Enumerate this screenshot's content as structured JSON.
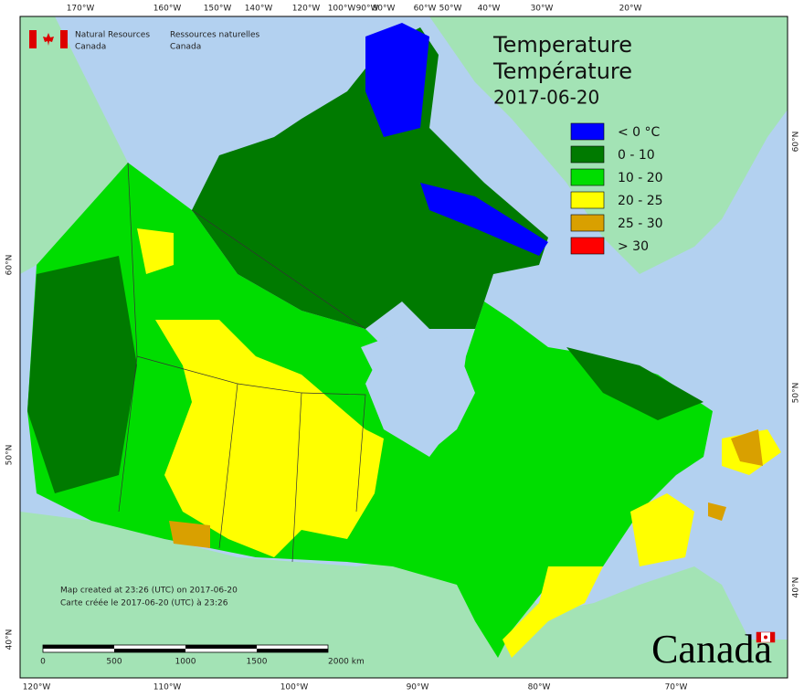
{
  "header": {
    "agency_en": [
      "Natural Resources",
      "Canada"
    ],
    "agency_fr": [
      "Ressources naturelles",
      "Canada"
    ]
  },
  "title": [
    "Temperature",
    "Température",
    "2017-06-20"
  ],
  "legend": [
    {
      "label": "< 0 °C",
      "color": "#0000ff"
    },
    {
      "label": "0 - 10",
      "color": "#007a00"
    },
    {
      "label": "10 - 20",
      "color": "#00dd00"
    },
    {
      "label": "20 - 25",
      "color": "#ffff00"
    },
    {
      "label": "25 - 30",
      "color": "#d9a000"
    },
    {
      "label": "> 30",
      "color": "#ff0000"
    }
  ],
  "graticule": {
    "top": [
      "170°W",
      "160°W",
      "150°W",
      "140°W",
      "120°W",
      "100°W",
      "90°W",
      "80°W",
      "60°W",
      "50°W",
      "40°W",
      "30°W",
      "20°W"
    ],
    "bottom": [
      "120°W",
      "110°W",
      "100°W",
      "90°W",
      "80°W",
      "70°W"
    ],
    "left": [
      "60°N",
      "50°N",
      "40°N"
    ],
    "right": [
      "60°N",
      "50°N",
      "40°N"
    ]
  },
  "footer": [
    "Map created at 23:26 (UTC) on 2017-06-20",
    "Carte créée le 2017-06-20 (UTC) à 23:26"
  ],
  "scale": [
    "0",
    "500",
    "1000",
    "1500",
    "2000 km"
  ],
  "wordmark": "Canada"
}
